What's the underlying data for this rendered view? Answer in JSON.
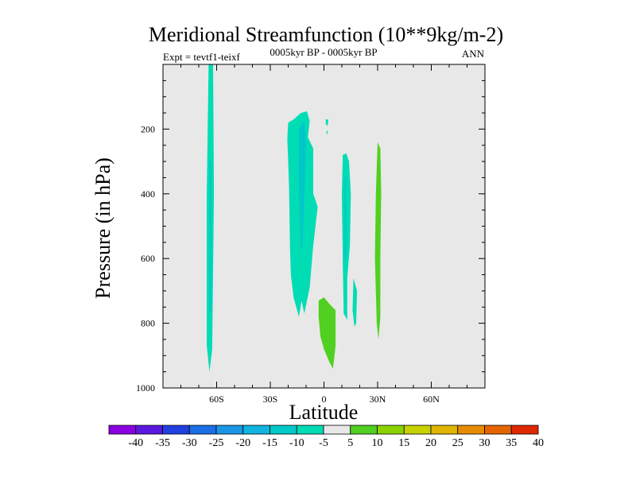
{
  "chart_data": {
    "type": "contour",
    "title": "Meridional Streamfunction (10**9kg/m-2)",
    "left_label": "Expt = tevtf1-teixf",
    "center_label": "0005kyr BP - 0005kyr BP",
    "right_label": "ANN",
    "xlabel": "Latitude",
    "ylabel": "Pressure (in hPa)",
    "xlim": [
      -90,
      90
    ],
    "ylim": [
      0,
      1000
    ],
    "x_ticks": [
      {
        "value": -60,
        "label": "60S"
      },
      {
        "value": -30,
        "label": "30S"
      },
      {
        "value": 0,
        "label": "0"
      },
      {
        "value": 30,
        "label": "30N"
      },
      {
        "value": 60,
        "label": "60N"
      }
    ],
    "y_ticks": [
      {
        "value": 200,
        "label": "200"
      },
      {
        "value": 400,
        "label": "400"
      },
      {
        "value": 600,
        "label": "600"
      },
      {
        "value": 800,
        "label": "800"
      },
      {
        "value": 1000,
        "label": "1000"
      }
    ],
    "background_color": "#e8e8e8",
    "colorbar": {
      "labels": [
        "-40",
        "-35",
        "-30",
        "-25",
        "-20",
        "-15",
        "-10",
        "-5",
        "5",
        "10",
        "15",
        "20",
        "25",
        "30",
        "35",
        "40"
      ],
      "colors": [
        "#8a00e0",
        "#5a18e0",
        "#2040e0",
        "#1a6ee6",
        "#1a96e6",
        "#10b4e0",
        "#00c8c8",
        "#00dcb4",
        "#e8e8e8",
        "#50d020",
        "#8cd200",
        "#c8d200",
        "#e0b400",
        "#e68c00",
        "#e66400",
        "#e02800"
      ]
    },
    "regions": [
      {
        "value": -7.5,
        "color": "#00dcb4",
        "points": [
          [
            -64.5,
            0
          ],
          [
            -62,
            0
          ],
          [
            -61.5,
            400
          ],
          [
            -62.5,
            880
          ],
          [
            -64,
            950
          ],
          [
            -65.5,
            870
          ],
          [
            -65.5,
            400
          ]
        ]
      },
      {
        "value": -12.5,
        "color": "#00c8c8",
        "points": [
          [
            -64,
            300
          ],
          [
            -63,
            300
          ],
          [
            -63,
            760
          ],
          [
            -64,
            770
          ]
        ]
      },
      {
        "value": -7.5,
        "color": "#00dcb4",
        "points": [
          [
            -20.5,
            230
          ],
          [
            -20,
            180
          ],
          [
            -17,
            170
          ],
          [
            -13,
            150
          ],
          [
            -9.5,
            145
          ],
          [
            -8,
            175
          ],
          [
            -9,
            225
          ],
          [
            -6,
            260
          ],
          [
            -6,
            400
          ],
          [
            -3.5,
            440
          ],
          [
            -6,
            560
          ],
          [
            -8,
            690
          ],
          [
            -11,
            770
          ],
          [
            -12.5,
            730
          ],
          [
            -14,
            780
          ],
          [
            -17,
            720
          ],
          [
            -18.5,
            650
          ],
          [
            -19,
            570
          ],
          [
            -19.5,
            380
          ],
          [
            -20,
            300
          ]
        ]
      },
      {
        "value": -12.5,
        "color": "#00c8c8",
        "points": [
          [
            -14,
            200
          ],
          [
            -11,
            175
          ],
          [
            -10,
            245
          ],
          [
            -11,
            410
          ],
          [
            -12,
            560
          ],
          [
            -13,
            570
          ],
          [
            -14,
            390
          ]
        ]
      },
      {
        "value": -7.5,
        "color": "#00dcb4",
        "points": [
          [
            1,
            170
          ],
          [
            2.5,
            170
          ],
          [
            2,
            190
          ],
          [
            1,
            185
          ]
        ]
      },
      {
        "value": -7.5,
        "color": "#00dcb4",
        "points": [
          [
            1.5,
            205
          ],
          [
            2,
            205
          ],
          [
            2,
            215
          ],
          [
            1.5,
            215
          ]
        ]
      },
      {
        "value": -7.5,
        "color": "#00dcb4",
        "points": [
          [
            10.5,
            280
          ],
          [
            12.5,
            275
          ],
          [
            14,
            300
          ],
          [
            15,
            400
          ],
          [
            14.5,
            560
          ],
          [
            13,
            660
          ],
          [
            13,
            790
          ],
          [
            11,
            770
          ],
          [
            10.5,
            600
          ],
          [
            10,
            400
          ]
        ]
      },
      {
        "value": -12.5,
        "color": "#00c8c8",
        "points": [
          [
            11.5,
            350
          ],
          [
            12.5,
            350
          ],
          [
            12.5,
            600
          ],
          [
            11.5,
            600
          ]
        ]
      },
      {
        "value": -7.5,
        "color": "#00dcb4",
        "points": [
          [
            16.5,
            660
          ],
          [
            18.5,
            700
          ],
          [
            18,
            800
          ],
          [
            17,
            810
          ],
          [
            16,
            760
          ]
        ]
      },
      {
        "value": 7.5,
        "color": "#50d020",
        "points": [
          [
            30,
            240
          ],
          [
            31.5,
            260
          ],
          [
            32,
            400
          ],
          [
            31.5,
            600
          ],
          [
            31.5,
            780
          ],
          [
            30.5,
            850
          ],
          [
            29.5,
            800
          ],
          [
            28.5,
            600
          ],
          [
            29,
            400
          ]
        ]
      },
      {
        "value": 7.5,
        "color": "#50d020",
        "points": [
          [
            -3,
            730
          ],
          [
            0,
            720
          ],
          [
            3,
            740
          ],
          [
            6.5,
            760
          ],
          [
            6.5,
            870
          ],
          [
            5,
            940
          ],
          [
            3,
            920
          ],
          [
            0,
            880
          ],
          [
            -2,
            840
          ],
          [
            -3,
            780
          ]
        ]
      }
    ]
  }
}
